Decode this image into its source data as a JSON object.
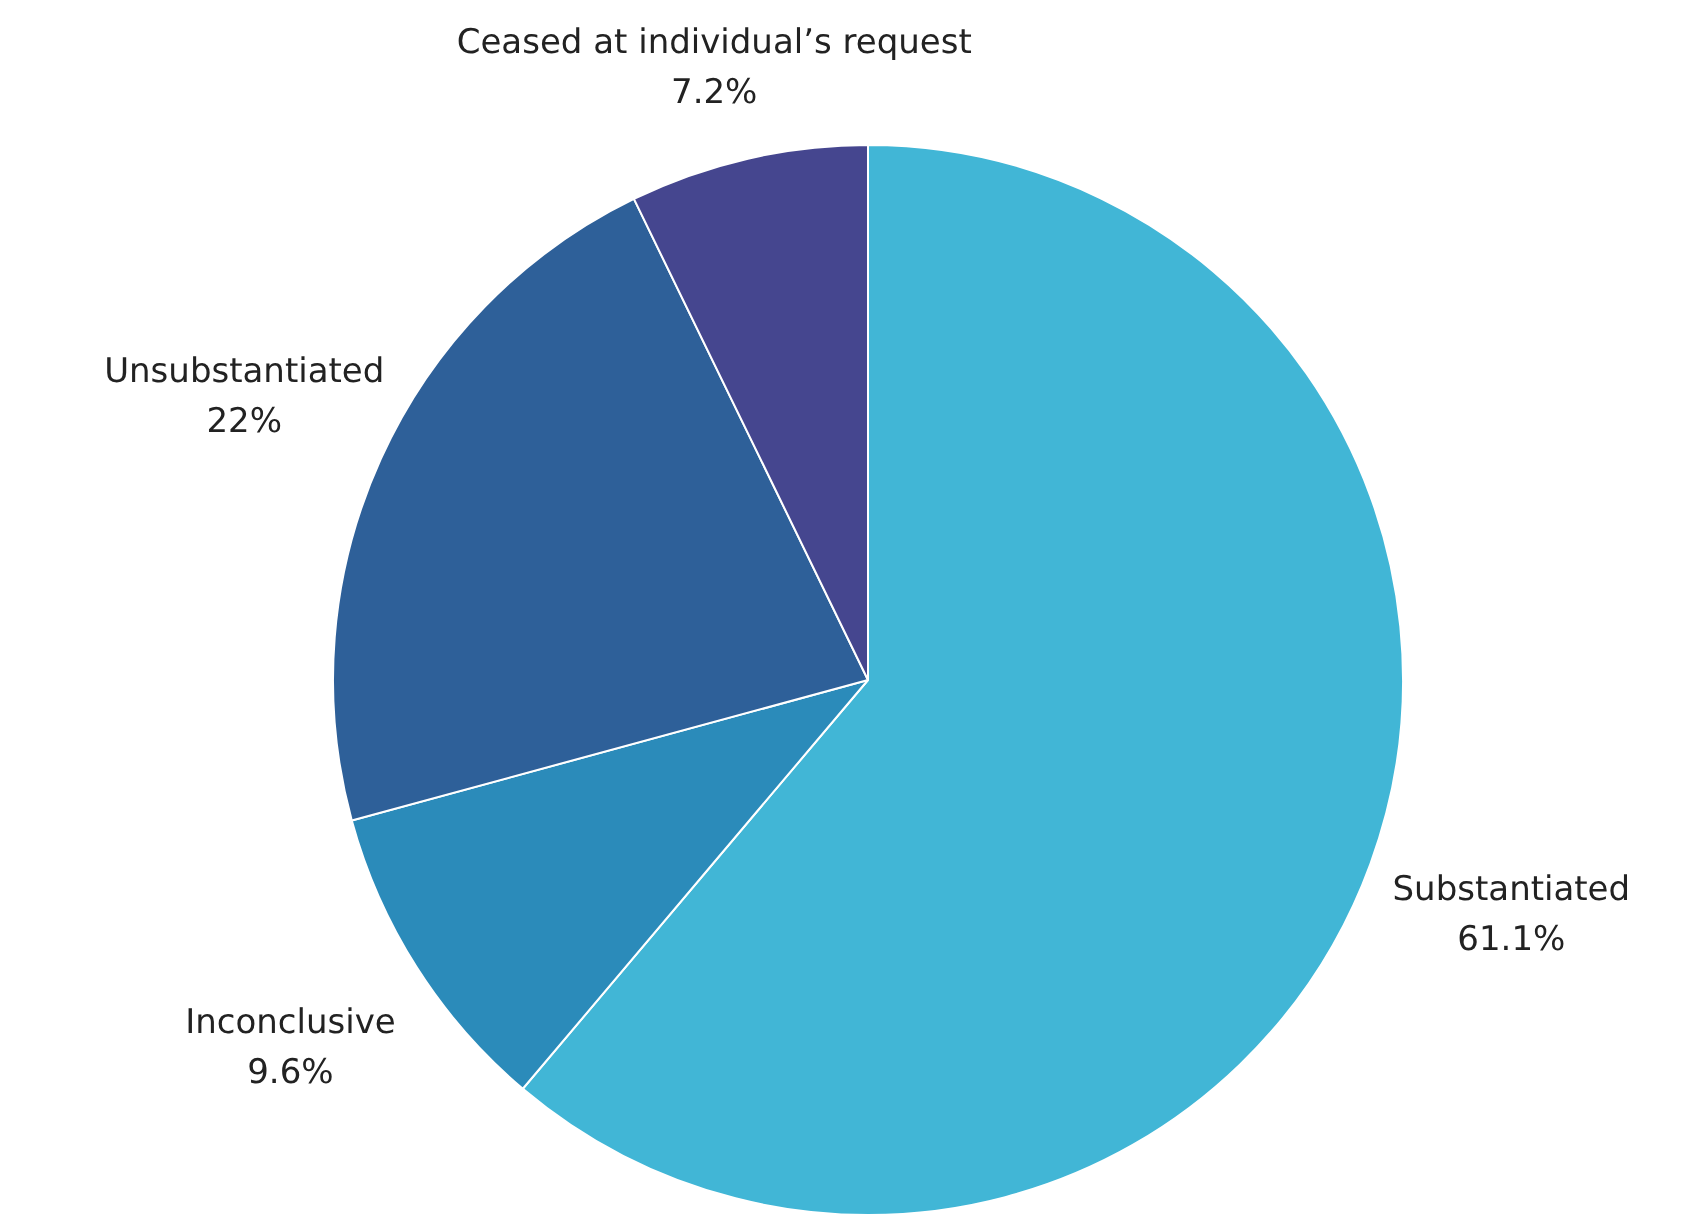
{
  "chart_data": {
    "type": "pie",
    "categories": [
      "Substantiated",
      "Inconclusive",
      "Unsubstantiated",
      "Ceased at individual’s request"
    ],
    "values": [
      61.1,
      9.6,
      22,
      7.2
    ],
    "colors": [
      "#41b6d6",
      "#2b8bba",
      "#2e6099",
      "#45468f"
    ],
    "value_labels": [
      "61.1%",
      "9.6%",
      "22%",
      "7.2%"
    ],
    "legend": false
  }
}
